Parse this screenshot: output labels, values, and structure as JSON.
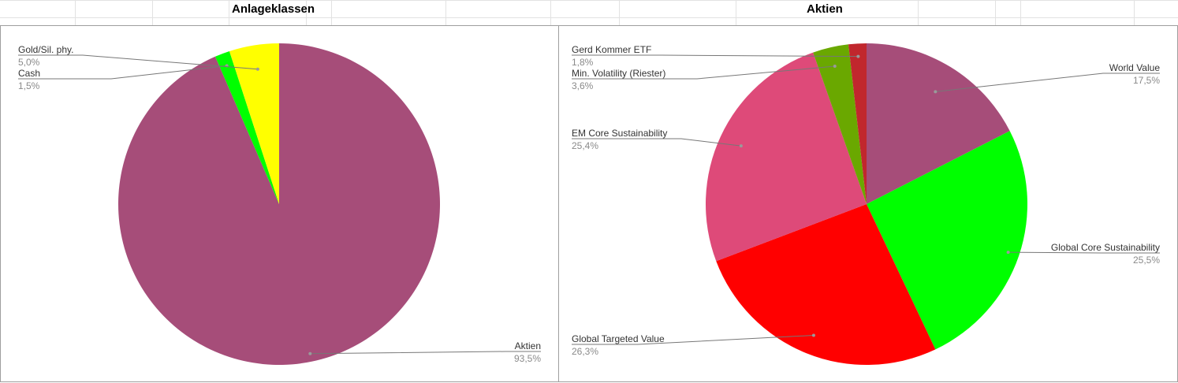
{
  "sheet": {
    "title_left": "Anlageklassen",
    "title_right": "Aktien"
  },
  "chart_data": [
    {
      "type": "pie",
      "title": "Anlageklassen",
      "slices": [
        {
          "label": "Aktien",
          "value_label": "93,5%",
          "value": 93.5,
          "color": "#a64d79"
        },
        {
          "label": "Cash",
          "value_label": "1,5%",
          "value": 1.5,
          "color": "#00ff00"
        },
        {
          "label": "Gold/Sil. phy.",
          "value_label": "5,0%",
          "value": 5.0,
          "color": "#ffff00"
        }
      ]
    },
    {
      "type": "pie",
      "title": "Aktien",
      "slices": [
        {
          "label": "World Value",
          "value_label": "17,5%",
          "value": 17.5,
          "color": "#a64d79"
        },
        {
          "label": "Global Core Sustainability",
          "value_label": "25,5%",
          "value": 25.5,
          "color": "#00ff00"
        },
        {
          "label": "Global Targeted Value",
          "value_label": "26,3%",
          "value": 26.3,
          "color": "#ff0000"
        },
        {
          "label": "EM Core Sustainability",
          "value_label": "25,4%",
          "value": 25.4,
          "color": "#de4a79"
        },
        {
          "label": "Min. Volatility (Riester)",
          "value_label": "3,6%",
          "value": 3.6,
          "color": "#6aa800"
        },
        {
          "label": "Gerd Kommer ETF",
          "value_label": "1,8%",
          "value": 1.8,
          "color": "#c1272d"
        }
      ]
    }
  ]
}
